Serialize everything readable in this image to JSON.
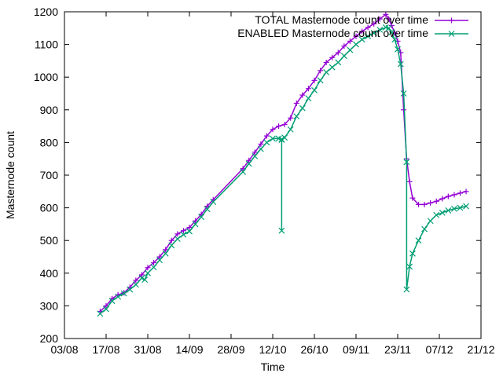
{
  "chart_data": {
    "type": "line",
    "title": "",
    "xlabel": "Time",
    "ylabel": "Masternode count",
    "x_ticks": [
      "03/08",
      "17/08",
      "31/08",
      "14/09",
      "28/09",
      "12/10",
      "26/10",
      "09/11",
      "23/11",
      "07/12",
      "21/12"
    ],
    "y_ticks": [
      200,
      300,
      400,
      500,
      600,
      700,
      800,
      900,
      1000,
      1100,
      1200
    ],
    "xlim": [
      "03/08",
      "21/12"
    ],
    "ylim": [
      200,
      1200
    ],
    "grid": false,
    "legend_position": "top-right",
    "series": [
      {
        "name": "TOTAL Masternode count over time",
        "color": "#9400d3",
        "marker": "plus",
        "points": [
          [
            "15/08",
            283
          ],
          [
            "17/08",
            300
          ],
          [
            "19/08",
            322
          ],
          [
            "21/08",
            334
          ],
          [
            "23/08",
            340
          ],
          [
            "25/08",
            357
          ],
          [
            "27/08",
            378
          ],
          [
            "29/08",
            395
          ],
          [
            "31/08",
            417
          ],
          [
            "02/09",
            432
          ],
          [
            "04/09",
            450
          ],
          [
            "06/09",
            472
          ],
          [
            "08/09",
            500
          ],
          [
            "10/09",
            520
          ],
          [
            "12/09",
            530
          ],
          [
            "14/09",
            540
          ],
          [
            "16/09",
            560
          ],
          [
            "18/09",
            580
          ],
          [
            "20/09",
            605
          ],
          [
            "22/09",
            625
          ],
          [
            "02/10",
            720
          ],
          [
            "04/10",
            745
          ],
          [
            "06/10",
            770
          ],
          [
            "08/10",
            795
          ],
          [
            "10/10",
            820
          ],
          [
            "12/10",
            840
          ],
          [
            "14/10",
            850
          ],
          [
            "16/10",
            855
          ],
          [
            "18/10",
            875
          ],
          [
            "20/10",
            920
          ],
          [
            "22/10",
            945
          ],
          [
            "24/10",
            965
          ],
          [
            "26/10",
            990
          ],
          [
            "28/10",
            1020
          ],
          [
            "30/10",
            1045
          ],
          [
            "01/11",
            1060
          ],
          [
            "03/11",
            1075
          ],
          [
            "05/11",
            1095
          ],
          [
            "07/11",
            1110
          ],
          [
            "09/11",
            1125
          ],
          [
            "11/11",
            1140
          ],
          [
            "13/11",
            1152
          ],
          [
            "15/11",
            1163
          ],
          [
            "17/11",
            1178
          ],
          [
            "19/11",
            1192
          ],
          [
            "20/11",
            1178
          ],
          [
            "21/11",
            1158
          ],
          [
            "22/11",
            1135
          ],
          [
            "23/11",
            1110
          ],
          [
            "24/11",
            1075
          ],
          [
            "25/11",
            900
          ],
          [
            "26/11",
            750
          ],
          [
            "27/11",
            680
          ],
          [
            "28/11",
            630
          ],
          [
            "30/11",
            610
          ],
          [
            "02/12",
            610
          ],
          [
            "04/12",
            615
          ],
          [
            "06/12",
            620
          ],
          [
            "08/12",
            628
          ],
          [
            "10/12",
            635
          ],
          [
            "12/12",
            640
          ],
          [
            "14/12",
            645
          ],
          [
            "16/12",
            650
          ]
        ]
      },
      {
        "name": "ENABLED Masternode count over time",
        "color": "#009e73",
        "marker": "cross",
        "points": [
          [
            "15/08",
            276
          ],
          [
            "17/08",
            290
          ],
          [
            "19/08",
            315
          ],
          [
            "21/08",
            328
          ],
          [
            "23/08",
            338
          ],
          [
            "25/08",
            350
          ],
          [
            "27/08",
            365
          ],
          [
            "29/08",
            385
          ],
          [
            "30/08",
            380
          ],
          [
            "31/08",
            400
          ],
          [
            "02/09",
            418
          ],
          [
            "04/09",
            440
          ],
          [
            "06/09",
            460
          ],
          [
            "08/09",
            485
          ],
          [
            "10/09",
            505
          ],
          [
            "12/09",
            518
          ],
          [
            "14/09",
            528
          ],
          [
            "16/09",
            550
          ],
          [
            "18/09",
            572
          ],
          [
            "20/09",
            596
          ],
          [
            "22/09",
            618
          ],
          [
            "02/10",
            710
          ],
          [
            "04/10",
            735
          ],
          [
            "06/10",
            758
          ],
          [
            "08/10",
            780
          ],
          [
            "10/10",
            800
          ],
          [
            "12/10",
            812
          ],
          [
            "14/10",
            812
          ],
          [
            "15/10",
            810
          ],
          [
            "15/10",
            530
          ],
          [
            "15/10",
            808
          ],
          [
            "16/10",
            815
          ],
          [
            "18/10",
            840
          ],
          [
            "20/10",
            880
          ],
          [
            "22/10",
            905
          ],
          [
            "24/10",
            935
          ],
          [
            "26/10",
            960
          ],
          [
            "28/10",
            990
          ],
          [
            "30/10",
            1015
          ],
          [
            "01/11",
            1030
          ],
          [
            "03/11",
            1045
          ],
          [
            "05/11",
            1065
          ],
          [
            "07/11",
            1083
          ],
          [
            "09/11",
            1100
          ],
          [
            "11/11",
            1115
          ],
          [
            "13/11",
            1125
          ],
          [
            "15/11",
            1135
          ],
          [
            "17/11",
            1145
          ],
          [
            "19/11",
            1152
          ],
          [
            "20/11",
            1150
          ],
          [
            "21/11",
            1138
          ],
          [
            "22/11",
            1115
          ],
          [
            "23/11",
            1085
          ],
          [
            "24/11",
            1040
          ],
          [
            "25/11",
            950
          ],
          [
            "26/11",
            740
          ],
          [
            "26/11",
            350
          ],
          [
            "27/11",
            420
          ],
          [
            "28/11",
            460
          ],
          [
            "30/11",
            500
          ],
          [
            "02/12",
            535
          ],
          [
            "04/12",
            560
          ],
          [
            "06/12",
            578
          ],
          [
            "08/12",
            585
          ],
          [
            "10/12",
            592
          ],
          [
            "12/12",
            597
          ],
          [
            "14/12",
            600
          ],
          [
            "16/12",
            605
          ]
        ]
      }
    ]
  }
}
